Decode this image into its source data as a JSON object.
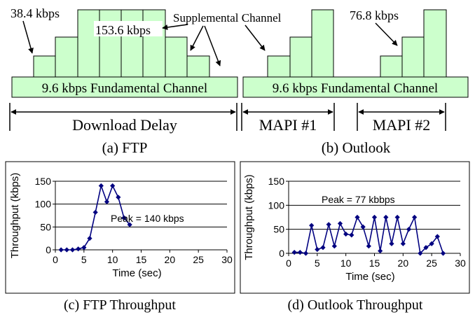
{
  "panel_a": {
    "fundamental_label": "9.6 kbps Fundamental Channel",
    "label_38": "38.4 kbps",
    "label_153": "153.6 kbps",
    "label_supp": "Supplemental Channel",
    "delay_label": "Download Delay",
    "caption": "(a) FTP"
  },
  "panel_b": {
    "fundamental_label": "9.6 kbps Fundamental Channel",
    "label_76": "76.8 kbps",
    "mapi1": "MAPI #1",
    "mapi2": "MAPI #2",
    "caption": "(b) Outlook"
  },
  "chart_c": {
    "peak_label": "Peak = 140 kbps",
    "caption": "(c) FTP Throughput"
  },
  "chart_d": {
    "peak_label": "Peak = 77 kbbps",
    "caption": "(d) Outlook Throughput"
  },
  "colors": {
    "block_fill": "#ccffcc",
    "series": "#000080"
  },
  "chart_data": [
    {
      "type": "line",
      "xlabel": "Time (sec)",
      "ylabel": "Throughput (kbps)",
      "xlim": [
        0,
        30
      ],
      "ylim": [
        0,
        150
      ],
      "xticks": [
        "0",
        "5",
        "10",
        "15",
        "20",
        "25",
        "30"
      ],
      "yticks": [
        "0",
        "50",
        "100",
        "150"
      ],
      "x": [
        1,
        2,
        3,
        4,
        5,
        6,
        7,
        8,
        9,
        10,
        11,
        12,
        13
      ],
      "y": [
        0,
        0,
        0,
        2,
        5,
        25,
        82,
        140,
        105,
        140,
        115,
        70,
        55
      ]
    },
    {
      "type": "line",
      "xlabel": "Time (sec)",
      "ylabel": "Throughput (kbps)",
      "xlim": [
        0,
        30
      ],
      "ylim": [
        0,
        150
      ],
      "xticks": [
        "0",
        "5",
        "10",
        "15",
        "20",
        "25",
        "30"
      ],
      "yticks": [
        "0",
        "50",
        "100",
        "150"
      ],
      "x": [
        1,
        2,
        3,
        4,
        5,
        6,
        7,
        8,
        9,
        10,
        11,
        12,
        13,
        14,
        15,
        16,
        17,
        18,
        19,
        20,
        21,
        22,
        23,
        24,
        25,
        26,
        27
      ],
      "y": [
        2,
        2,
        0,
        58,
        8,
        12,
        60,
        15,
        62,
        40,
        38,
        75,
        55,
        15,
        75,
        5,
        75,
        20,
        75,
        20,
        50,
        75,
        0,
        12,
        20,
        35,
        0
      ]
    }
  ]
}
